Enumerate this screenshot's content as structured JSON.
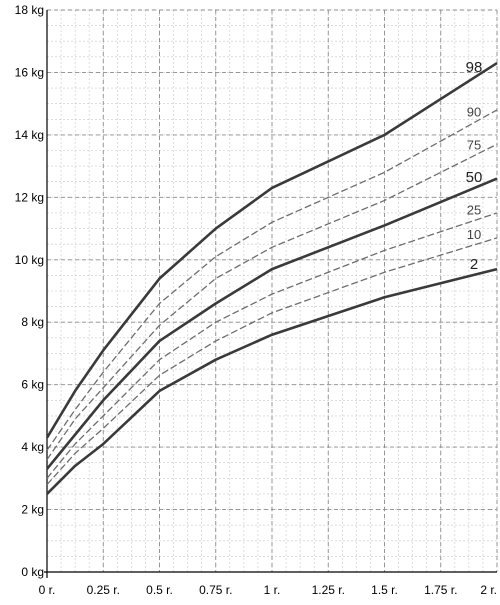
{
  "chart_data": {
    "type": "line",
    "title": "",
    "xlabel": "",
    "ylabel": "",
    "xlim": [
      0,
      2
    ],
    "ylim": [
      0,
      18
    ],
    "x_ticks": [
      0,
      0.25,
      0.5,
      0.75,
      1,
      1.25,
      1.5,
      1.75,
      2
    ],
    "x_tick_labels": [
      "0 r.",
      "0.25 r.",
      "0.5 r.",
      "0.75 r.",
      "1 r.",
      "1.25 r.",
      "1.5 r.",
      "1.75 r.",
      "2 r."
    ],
    "y_ticks": [
      0,
      2,
      4,
      6,
      8,
      10,
      12,
      14,
      16,
      18
    ],
    "y_tick_labels": [
      "0 kg",
      "2 kg",
      "4 kg",
      "6 kg",
      "8 kg",
      "10 kg",
      "12 kg",
      "14 kg",
      "16 kg",
      "18 kg"
    ],
    "x": [
      0,
      0.125,
      0.25,
      0.5,
      0.75,
      1,
      1.5,
      2
    ],
    "grid": true,
    "series": [
      {
        "name": "98",
        "style": "bold",
        "values": [
          4.3,
          5.8,
          7.1,
          9.4,
          11.0,
          12.3,
          14.0,
          16.3
        ]
      },
      {
        "name": "90",
        "style": "dashed",
        "values": [
          3.9,
          5.2,
          6.4,
          8.6,
          10.1,
          11.2,
          12.8,
          14.8
        ]
      },
      {
        "name": "75",
        "style": "dashed",
        "values": [
          3.6,
          4.9,
          5.9,
          7.9,
          9.4,
          10.4,
          11.9,
          13.7
        ]
      },
      {
        "name": "50",
        "style": "bold",
        "values": [
          3.3,
          4.4,
          5.5,
          7.4,
          8.6,
          9.7,
          11.1,
          12.6
        ]
      },
      {
        "name": "25",
        "style": "dashed",
        "values": [
          3.0,
          4.1,
          5.0,
          6.8,
          8.0,
          8.9,
          10.3,
          11.5
        ]
      },
      {
        "name": "10",
        "style": "dashed",
        "values": [
          2.8,
          3.8,
          4.6,
          6.3,
          7.4,
          8.3,
          9.6,
          10.7
        ]
      },
      {
        "name": "2",
        "style": "bold",
        "values": [
          2.5,
          3.4,
          4.1,
          5.8,
          6.8,
          7.6,
          8.8,
          9.7
        ]
      }
    ],
    "colors": {
      "bold": "#3a3a3a",
      "dashed": "#6e6e6e",
      "grid": "#c8c8c8",
      "grid_major": "#8c8c8c"
    }
  }
}
